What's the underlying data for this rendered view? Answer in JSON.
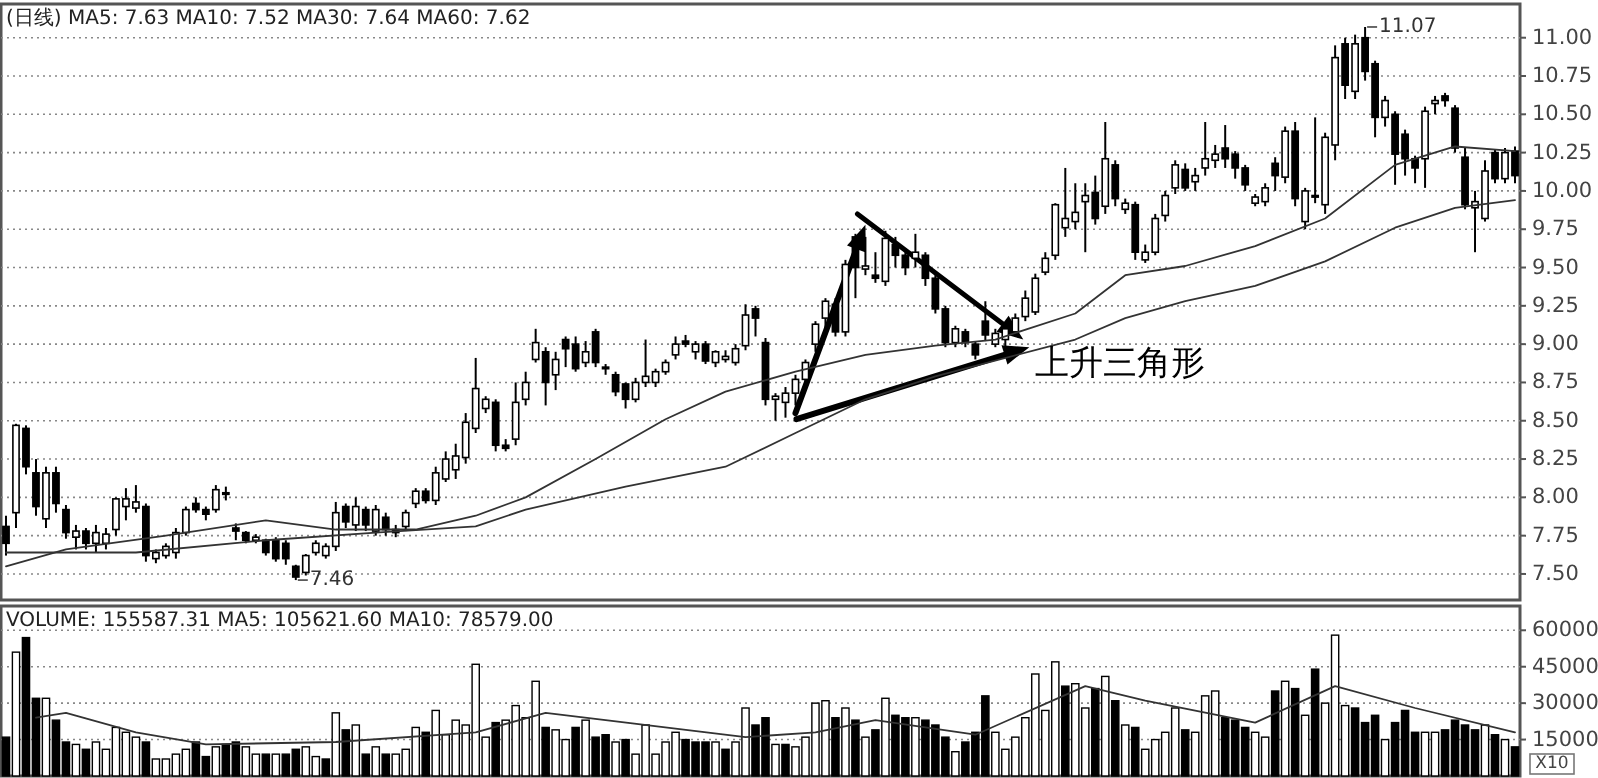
{
  "chart_data": [
    {
      "type": "candlestick",
      "title": "(日线) MA5: 7.63 MA10: 7.52 MA30: 7.64 MA60: 7.62",
      "categories": [
        null,
        null,
        null,
        null,
        null,
        null,
        null,
        null,
        null,
        null,
        null,
        null,
        null,
        null,
        null,
        null,
        null,
        null,
        null,
        null,
        null,
        null,
        null,
        null,
        null,
        null,
        null,
        null,
        null,
        null,
        null,
        null,
        null,
        null,
        null,
        null,
        null,
        null,
        null,
        null,
        null,
        null,
        null,
        null,
        null,
        null,
        null,
        null,
        null,
        null,
        null,
        null,
        null,
        null,
        null,
        null,
        null,
        null,
        null,
        null,
        null,
        null,
        null,
        null,
        null,
        null,
        null,
        null,
        null,
        null,
        null,
        null,
        null,
        null,
        null,
        null,
        null,
        null,
        null,
        null,
        null,
        null,
        null,
        null,
        null,
        null,
        null,
        null,
        null,
        null,
        null,
        null,
        null,
        null,
        null,
        null,
        null,
        null,
        null,
        null,
        null,
        null,
        null,
        null,
        null,
        null,
        null,
        null,
        null,
        null,
        null,
        null,
        null,
        null,
        null,
        null,
        null,
        null,
        null,
        null,
        null,
        null,
        null,
        null,
        null,
        null,
        null,
        null,
        null,
        null,
        null,
        null,
        null,
        null,
        null,
        null,
        null,
        null,
        null,
        null,
        null,
        null,
        null,
        null,
        null,
        null,
        null,
        null,
        null,
        null,
        null,
        null
      ],
      "ohlc": [
        [
          7.81,
          7.88,
          7.62,
          7.7
        ],
        [
          7.9,
          8.48,
          7.8,
          8.47
        ],
        [
          8.45,
          8.47,
          8.15,
          8.2
        ],
        [
          8.16,
          8.25,
          7.88,
          7.94
        ],
        [
          7.86,
          8.2,
          7.8,
          8.16
        ],
        [
          8.16,
          8.2,
          7.9,
          7.96
        ],
        [
          7.92,
          7.95,
          7.73,
          7.77
        ],
        [
          7.74,
          7.82,
          7.66,
          7.78
        ],
        [
          7.78,
          7.8,
          7.66,
          7.7
        ],
        [
          7.7,
          7.82,
          7.64,
          7.77
        ],
        [
          7.7,
          7.8,
          7.66,
          7.76
        ],
        [
          7.79,
          8.0,
          7.75,
          7.99
        ],
        [
          7.94,
          8.06,
          7.85,
          7.99
        ],
        [
          7.93,
          8.08,
          7.9,
          7.97
        ],
        [
          7.94,
          7.96,
          7.58,
          7.62
        ],
        [
          7.6,
          7.66,
          7.57,
          7.64
        ],
        [
          7.62,
          7.7,
          7.6,
          7.68
        ],
        [
          7.64,
          7.8,
          7.6,
          7.77
        ],
        [
          7.77,
          7.94,
          7.75,
          7.92
        ],
        [
          7.96,
          8.0,
          7.9,
          7.92
        ],
        [
          7.92,
          7.94,
          7.85,
          7.89
        ],
        [
          7.92,
          8.08,
          7.9,
          8.05
        ],
        [
          8.02,
          8.07,
          7.98,
          8.03
        ],
        [
          7.8,
          7.83,
          7.72,
          7.78
        ],
        [
          7.77,
          7.78,
          7.7,
          7.72
        ],
        [
          7.72,
          7.76,
          7.7,
          7.74
        ],
        [
          7.72,
          7.73,
          7.62,
          7.64
        ],
        [
          7.72,
          7.74,
          7.58,
          7.6
        ],
        [
          7.7,
          7.72,
          7.56,
          7.6
        ],
        [
          7.55,
          7.56,
          7.46,
          7.48
        ],
        [
          7.51,
          7.63,
          7.49,
          7.62
        ],
        [
          7.64,
          7.72,
          7.62,
          7.7
        ],
        [
          7.62,
          7.7,
          7.6,
          7.68
        ],
        [
          7.68,
          7.97,
          7.65,
          7.9
        ],
        [
          7.94,
          7.96,
          7.8,
          7.84
        ],
        [
          7.82,
          8.0,
          7.78,
          7.94
        ],
        [
          7.92,
          7.94,
          7.78,
          7.82
        ],
        [
          7.78,
          7.95,
          7.75,
          7.92
        ],
        [
          7.87,
          7.9,
          7.75,
          7.79
        ],
        [
          7.79,
          7.82,
          7.74,
          7.77
        ],
        [
          7.81,
          7.92,
          7.78,
          7.9
        ],
        [
          7.96,
          8.06,
          7.93,
          8.04
        ],
        [
          8.04,
          8.06,
          7.96,
          7.98
        ],
        [
          7.98,
          8.2,
          7.95,
          8.16
        ],
        [
          8.12,
          8.3,
          8.1,
          8.25
        ],
        [
          8.18,
          8.35,
          8.12,
          8.27
        ],
        [
          8.26,
          8.55,
          8.22,
          8.49
        ],
        [
          8.45,
          8.91,
          8.42,
          8.71
        ],
        [
          8.58,
          8.66,
          8.55,
          8.64
        ],
        [
          8.62,
          8.64,
          8.3,
          8.34
        ],
        [
          8.34,
          8.38,
          8.3,
          8.32
        ],
        [
          8.38,
          8.75,
          8.34,
          8.62
        ],
        [
          8.64,
          8.82,
          8.6,
          8.75
        ],
        [
          8.9,
          9.1,
          8.88,
          9.01
        ],
        [
          8.95,
          8.98,
          8.6,
          8.75
        ],
        [
          8.8,
          8.95,
          8.7,
          8.9
        ],
        [
          9.03,
          9.05,
          8.85,
          8.97
        ],
        [
          9.0,
          9.05,
          8.82,
          8.84
        ],
        [
          8.88,
          9.02,
          8.85,
          8.95
        ],
        [
          9.08,
          9.1,
          8.85,
          8.88
        ],
        [
          8.85,
          8.87,
          8.8,
          8.84
        ],
        [
          8.8,
          8.82,
          8.66,
          8.69
        ],
        [
          8.74,
          8.75,
          8.58,
          8.64
        ],
        [
          8.64,
          8.78,
          8.62,
          8.75
        ],
        [
          8.75,
          9.03,
          8.72,
          8.79
        ],
        [
          8.75,
          8.84,
          8.72,
          8.82
        ],
        [
          8.82,
          8.9,
          8.8,
          8.88
        ],
        [
          8.93,
          9.05,
          8.9,
          9.0
        ],
        [
          9.02,
          9.06,
          8.98,
          9.0
        ],
        [
          8.95,
          9.02,
          8.9,
          9.0
        ],
        [
          9.0,
          9.02,
          8.87,
          8.89
        ],
        [
          8.88,
          8.96,
          8.85,
          8.95
        ],
        [
          8.9,
          8.96,
          8.88,
          8.92
        ],
        [
          8.88,
          9.0,
          8.86,
          8.97
        ],
        [
          8.99,
          9.26,
          8.96,
          9.19
        ],
        [
          9.23,
          9.25,
          9.05,
          9.17
        ],
        [
          9.01,
          9.04,
          8.6,
          8.64
        ],
        [
          8.64,
          8.68,
          8.5,
          8.66
        ],
        [
          8.62,
          8.72,
          8.52,
          8.68
        ],
        [
          8.68,
          8.8,
          8.6,
          8.77
        ],
        [
          8.77,
          8.9,
          8.72,
          8.88
        ],
        [
          9.0,
          9.15,
          8.95,
          9.13
        ],
        [
          9.17,
          9.3,
          9.1,
          9.28
        ],
        [
          9.26,
          9.3,
          9.05,
          9.08
        ],
        [
          9.08,
          9.55,
          9.05,
          9.52
        ],
        [
          9.7,
          9.72,
          9.3,
          9.5
        ],
        [
          9.49,
          9.7,
          9.45,
          9.51
        ],
        [
          9.45,
          9.6,
          9.4,
          9.43
        ],
        [
          9.41,
          9.74,
          9.38,
          9.69
        ],
        [
          9.65,
          9.7,
          9.5,
          9.58
        ],
        [
          9.58,
          9.6,
          9.45,
          9.5
        ],
        [
          9.56,
          9.72,
          9.5,
          9.6
        ],
        [
          9.58,
          9.6,
          9.38,
          9.43
        ],
        [
          9.43,
          9.45,
          9.2,
          9.23
        ],
        [
          9.23,
          9.25,
          8.98,
          9.01
        ],
        [
          9.01,
          9.12,
          8.98,
          9.1
        ],
        [
          9.08,
          9.1,
          8.98,
          9.01
        ],
        [
          9.0,
          9.02,
          8.9,
          8.93
        ],
        [
          9.15,
          9.28,
          9.02,
          9.06
        ],
        [
          9.0,
          9.1,
          8.98,
          9.07
        ],
        [
          9.03,
          9.12,
          8.98,
          9.1
        ],
        [
          9.08,
          9.2,
          9.05,
          9.17
        ],
        [
          9.18,
          9.35,
          9.15,
          9.3
        ],
        [
          9.21,
          9.46,
          9.19,
          9.43
        ],
        [
          9.47,
          9.6,
          9.45,
          9.56
        ],
        [
          9.58,
          9.92,
          9.55,
          9.91
        ],
        [
          9.76,
          10.15,
          9.7,
          9.82
        ],
        [
          9.8,
          10.05,
          9.75,
          9.86
        ],
        [
          9.93,
          10.05,
          9.6,
          9.97
        ],
        [
          9.99,
          10.1,
          9.78,
          9.82
        ],
        [
          9.9,
          10.45,
          9.85,
          10.21
        ],
        [
          10.17,
          10.2,
          9.9,
          9.95
        ],
        [
          9.88,
          9.95,
          9.85,
          9.92
        ],
        [
          9.91,
          9.93,
          9.55,
          9.6
        ],
        [
          9.55,
          9.65,
          9.53,
          9.6
        ],
        [
          9.6,
          9.85,
          9.58,
          9.82
        ],
        [
          9.84,
          10.0,
          9.8,
          9.97
        ],
        [
          10.02,
          10.2,
          9.98,
          10.17
        ],
        [
          10.14,
          10.18,
          10.0,
          10.02
        ],
        [
          10.06,
          10.15,
          10.0,
          10.1
        ],
        [
          10.15,
          10.45,
          10.1,
          10.21
        ],
        [
          10.2,
          10.3,
          10.15,
          10.24
        ],
        [
          10.28,
          10.43,
          10.15,
          10.21
        ],
        [
          10.24,
          10.26,
          10.08,
          10.15
        ],
        [
          10.15,
          10.17,
          10.0,
          10.04
        ],
        [
          9.92,
          9.98,
          9.9,
          9.96
        ],
        [
          9.93,
          10.05,
          9.9,
          10.02
        ],
        [
          10.18,
          10.22,
          10.0,
          10.1
        ],
        [
          10.09,
          10.42,
          10.05,
          10.39
        ],
        [
          10.39,
          10.45,
          9.9,
          9.95
        ],
        [
          9.8,
          10.02,
          9.75,
          10.0
        ],
        [
          9.96,
          10.48,
          9.92,
          9.97
        ],
        [
          9.91,
          10.38,
          9.85,
          10.35
        ],
        [
          10.3,
          10.95,
          10.2,
          10.87
        ],
        [
          10.96,
          11.0,
          10.6,
          10.69
        ],
        [
          10.65,
          11.02,
          10.6,
          10.96
        ],
        [
          11.0,
          11.07,
          10.72,
          10.78
        ],
        [
          10.83,
          10.85,
          10.35,
          10.48
        ],
        [
          10.48,
          10.62,
          10.42,
          10.59
        ],
        [
          10.5,
          10.52,
          10.04,
          10.24
        ],
        [
          10.37,
          10.4,
          10.1,
          10.21
        ],
        [
          10.21,
          10.23,
          10.05,
          10.15
        ],
        [
          10.21,
          10.55,
          10.02,
          10.52
        ],
        [
          10.57,
          10.62,
          10.5,
          10.59
        ],
        [
          10.62,
          10.64,
          10.55,
          10.59
        ],
        [
          10.54,
          10.56,
          10.25,
          10.28
        ],
        [
          10.22,
          10.28,
          9.88,
          9.91
        ],
        [
          9.89,
          10.0,
          9.6,
          9.93
        ],
        [
          9.82,
          10.2,
          9.8,
          10.13
        ],
        [
          10.25,
          10.27,
          10.05,
          10.08
        ],
        [
          10.08,
          10.28,
          10.05,
          10.25
        ],
        [
          10.26,
          10.29,
          10.05,
          10.1
        ]
      ],
      "series": [
        {
          "type": "line",
          "color": "#333333",
          "values": [
            7.55,
            null,
            null,
            null,
            null,
            null,
            7.66,
            null,
            null,
            null,
            null,
            null,
            null,
            null,
            null,
            null,
            7.75,
            null,
            null,
            null,
            null,
            null,
            null,
            null,
            null,
            null,
            7.85,
            null,
            null,
            null,
            null,
            null,
            null,
            7.79,
            null,
            null,
            null,
            null,
            null,
            null,
            null,
            7.79,
            null,
            null,
            null,
            null,
            null,
            7.88,
            null,
            null,
            null,
            null,
            8.0,
            null,
            null,
            null,
            null,
            null,
            null,
            8.25,
            null,
            null,
            null,
            null,
            null,
            null,
            8.51,
            null,
            null,
            null,
            null,
            null,
            8.69,
            null,
            null,
            null,
            null,
            null,
            null,
            8.82,
            null,
            null,
            null,
            null,
            null,
            null,
            8.93,
            null,
            null,
            null,
            null,
            null,
            null,
            8.99,
            null,
            null,
            null,
            null,
            null,
            9.03,
            null,
            null,
            null,
            null,
            null,
            null,
            null,
            9.2,
            null,
            null,
            null,
            null,
            9.45,
            null,
            null,
            null,
            null,
            null,
            9.51,
            null,
            null,
            null,
            null,
            null,
            null,
            9.64,
            null,
            null,
            null,
            null,
            null,
            null,
            9.82,
            null,
            null,
            null,
            null,
            null,
            null,
            10.17,
            null,
            null,
            null,
            null,
            null,
            10.29,
            null,
            null,
            null,
            null,
            null,
            10.26
          ]
        },
        {
          "type": "line",
          "color": "#333333",
          "values": [
            7.64,
            null,
            null,
            null,
            null,
            null,
            null,
            null,
            null,
            null,
            null,
            null,
            null,
            7.64,
            null,
            null,
            null,
            null,
            null,
            null,
            null,
            null,
            null,
            null,
            null,
            null,
            7.72,
            null,
            null,
            null,
            null,
            null,
            null,
            null,
            null,
            null,
            null,
            7.77,
            null,
            null,
            null,
            null,
            null,
            null,
            null,
            null,
            null,
            7.81,
            null,
            null,
            null,
            null,
            7.92,
            null,
            null,
            null,
            null,
            null,
            null,
            null,
            null,
            null,
            8.07,
            null,
            null,
            null,
            null,
            null,
            null,
            null,
            null,
            null,
            8.2,
            null,
            null,
            null,
            null,
            null,
            null,
            8.42,
            null,
            null,
            null,
            null,
            null,
            null,
            8.64,
            null,
            null,
            null,
            null,
            null,
            null,
            8.79,
            null,
            null,
            null,
            null,
            null,
            null,
            null,
            null,
            null,
            null,
            null,
            null,
            null,
            9.03,
            null,
            null,
            null,
            null,
            9.17,
            null,
            null,
            null,
            null,
            null,
            9.28,
            null,
            null,
            null,
            null,
            null,
            null,
            9.38,
            null,
            null,
            null,
            null,
            null,
            null,
            9.54,
            null,
            null,
            null,
            null,
            null,
            null,
            9.76,
            null,
            null,
            null,
            null,
            null,
            9.89,
            null,
            null,
            null,
            null,
            null,
            9.94
          ]
        }
      ],
      "ylim": [
        7.33,
        11.22
      ],
      "yticks": [
        {
          "value": 7.5,
          "label": "7.50"
        },
        {
          "value": 7.75,
          "label": "7.75"
        },
        {
          "value": 8,
          "label": "8.00"
        },
        {
          "value": 8.25,
          "label": "8.25"
        },
        {
          "value": 8.5,
          "label": "8.50"
        },
        {
          "value": 8.75,
          "label": "8.75"
        },
        {
          "value": 9,
          "label": "9.00"
        },
        {
          "value": 9.25,
          "label": "9.25"
        },
        {
          "value": 9.5,
          "label": "9.50"
        },
        {
          "value": 9.75,
          "label": "9.75"
        },
        {
          "value": 10,
          "label": "10.00"
        },
        {
          "value": 10.25,
          "label": "10.25"
        },
        {
          "value": 10.5,
          "label": "10.50"
        },
        {
          "value": 10.75,
          "label": "10.75"
        },
        {
          "value": 11,
          "label": "11.00"
        }
      ],
      "grid": "y",
      "tick_labels": "y",
      "annotations": [
        "上升三角形",
        "11.07",
        "7.46"
      ]
    },
    {
      "type": "bar",
      "title": "VOLUME: 155587.31 MA5: 105621.60 MA10: 78579.00",
      "categories": [
        null,
        null,
        null,
        null,
        null,
        null,
        null,
        null,
        null,
        null,
        null,
        null,
        null,
        null,
        null,
        null,
        null,
        null,
        null,
        null,
        null,
        null,
        null,
        null,
        null,
        null,
        null,
        null,
        null,
        null,
        null,
        null,
        null,
        null,
        null,
        null,
        null,
        null,
        null,
        null,
        null,
        null,
        null,
        null,
        null,
        null,
        null,
        null,
        null,
        null,
        null,
        null,
        null,
        null,
        null,
        null,
        null,
        null,
        null,
        null,
        null,
        null,
        null,
        null,
        null,
        null,
        null,
        null,
        null,
        null,
        null,
        null,
        null,
        null,
        null,
        null,
        null,
        null,
        null,
        null,
        null,
        null,
        null,
        null,
        null,
        null,
        null,
        null,
        null,
        null,
        null,
        null,
        null,
        null,
        null,
        null,
        null,
        null,
        null,
        null,
        null,
        null,
        null,
        null,
        null,
        null,
        null,
        null,
        null,
        null,
        null,
        null,
        null,
        null,
        null,
        null,
        null,
        null,
        null,
        null,
        null,
        null,
        null,
        null,
        null,
        null,
        null,
        null,
        null,
        null,
        null,
        null,
        null,
        null,
        null,
        null,
        null,
        null,
        null,
        null,
        null,
        null,
        null,
        null,
        null,
        null,
        null,
        null,
        null,
        null,
        null,
        null
      ],
      "series": [
        {
          "type": "bar",
          "values": [
            16000,
            51000,
            57000,
            32000,
            32000,
            23000,
            14000,
            13000,
            11000,
            14000,
            11000,
            20000,
            18000,
            16000,
            14000,
            7000,
            7000,
            9000,
            11000,
            14000,
            8000,
            12000,
            13000,
            14000,
            12000,
            9000,
            9000,
            9000,
            9000,
            11000,
            12000,
            8000,
            7000,
            26000,
            19000,
            21000,
            9000,
            12000,
            9000,
            9000,
            11000,
            20000,
            18000,
            27000,
            17000,
            23000,
            21000,
            46000,
            16000,
            22000,
            23000,
            29000,
            24000,
            39000,
            20000,
            19000,
            15000,
            20000,
            23000,
            16000,
            17000,
            14000,
            15000,
            9000,
            21000,
            9000,
            14000,
            18000,
            15000,
            14000,
            14000,
            14000,
            11000,
            14000,
            28000,
            21000,
            24000,
            13000,
            13000,
            12000,
            16000,
            30000,
            31000,
            24000,
            28000,
            23000,
            16000,
            19000,
            32000,
            25000,
            24000,
            24000,
            23000,
            21000,
            16000,
            10000,
            14000,
            18000,
            33000,
            18000,
            11000,
            16000,
            24000,
            42000,
            27000,
            47000,
            37000,
            38000,
            28000,
            36000,
            41000,
            31000,
            21000,
            20000,
            11000,
            15000,
            18000,
            28000,
            19000,
            18000,
            33000,
            35000,
            24000,
            23000,
            20000,
            18000,
            16000,
            35000,
            39000,
            36000,
            25000,
            44000,
            30000,
            58000,
            29000,
            28000,
            22000,
            25000,
            15000,
            22000,
            27000,
            18000,
            18000,
            18000,
            19000,
            23000,
            21000,
            19000,
            21000,
            17000,
            15000,
            12000
          ],
          "colors": [
            "#000000",
            "#ffffff",
            "#000000",
            "#000000",
            "#ffffff",
            "#000000",
            "#000000",
            "#ffffff",
            "#000000",
            "#ffffff",
            "#ffffff",
            "#ffffff",
            "#ffffff",
            "#ffffff",
            "#000000",
            "#ffffff",
            "#ffffff",
            "#ffffff",
            "#ffffff",
            "#000000",
            "#000000",
            "#ffffff",
            "#000000",
            "#000000",
            "#ffffff",
            "#ffffff",
            "#000000",
            "#ffffff",
            "#000000",
            "#000000",
            "#ffffff",
            "#ffffff",
            "#000000",
            "#ffffff",
            "#000000",
            "#ffffff",
            "#000000",
            "#ffffff",
            "#000000",
            "#ffffff",
            "#ffffff",
            "#ffffff",
            "#000000",
            "#ffffff",
            "#ffffff",
            "#ffffff",
            "#ffffff",
            "#ffffff",
            "#ffffff",
            "#000000",
            "#ffffff",
            "#ffffff",
            "#ffffff",
            "#ffffff",
            "#000000",
            "#ffffff",
            "#ffffff",
            "#000000",
            "#ffffff",
            "#000000",
            "#000000",
            "#ffffff",
            "#000000",
            "#ffffff",
            "#ffffff",
            "#ffffff",
            "#ffffff",
            "#ffffff",
            "#000000",
            "#000000",
            "#000000",
            "#ffffff",
            "#000000",
            "#ffffff",
            "#ffffff",
            "#000000",
            "#000000",
            "#ffffff",
            "#000000",
            "#ffffff",
            "#ffffff",
            "#ffffff",
            "#ffffff",
            "#000000",
            "#ffffff",
            "#000000",
            "#ffffff",
            "#000000",
            "#ffffff",
            "#000000",
            "#000000",
            "#ffffff",
            "#000000",
            "#000000",
            "#000000",
            "#ffffff",
            "#000000",
            "#000000",
            "#000000",
            "#ffffff",
            "#ffffff",
            "#ffffff",
            "#ffffff",
            "#ffffff",
            "#ffffff",
            "#ffffff",
            "#000000",
            "#ffffff",
            "#ffffff",
            "#000000",
            "#ffffff",
            "#000000",
            "#ffffff",
            "#000000",
            "#ffffff",
            "#ffffff",
            "#ffffff",
            "#ffffff",
            "#000000",
            "#ffffff",
            "#ffffff",
            "#ffffff",
            "#000000",
            "#000000",
            "#000000",
            "#ffffff",
            "#ffffff",
            "#000000",
            "#ffffff",
            "#000000",
            "#ffffff",
            "#000000",
            "#ffffff",
            "#ffffff",
            "#ffffff",
            "#000000",
            "#000000",
            "#000000",
            "#ffffff",
            "#000000",
            "#000000",
            "#000000",
            "#ffffff",
            "#ffffff",
            "#000000",
            "#000000",
            "#000000",
            "#000000",
            "#ffffff",
            "#000000",
            "#ffffff",
            "#000000"
          ]
        },
        {
          "type": "line",
          "color": "#333333",
          "values": [
            null,
            null,
            null,
            24000,
            null,
            null,
            26000,
            null,
            null,
            null,
            null,
            null,
            null,
            18000,
            null,
            null,
            null,
            null,
            null,
            null,
            13000,
            null,
            null,
            null,
            null,
            null,
            null,
            null,
            null,
            null,
            null,
            null,
            null,
            14000,
            null,
            null,
            null,
            null,
            null,
            null,
            null,
            null,
            null,
            null,
            null,
            null,
            null,
            18000,
            null,
            null,
            null,
            null,
            null,
            null,
            26000,
            null,
            null,
            null,
            null,
            null,
            23000,
            null,
            null,
            null,
            null,
            null,
            null,
            null,
            null,
            null,
            null,
            null,
            null,
            null,
            16000,
            null,
            null,
            null,
            null,
            null,
            null,
            18000,
            null,
            null,
            null,
            null,
            null,
            23000,
            null,
            null,
            null,
            null,
            null,
            null,
            null,
            null,
            null,
            17000,
            null,
            null,
            null,
            null,
            null,
            null,
            null,
            null,
            null,
            null,
            37000,
            null,
            null,
            null,
            null,
            null,
            31000,
            null,
            null,
            null,
            null,
            null,
            null,
            null,
            null,
            null,
            null,
            22000,
            null,
            null,
            null,
            null,
            null,
            null,
            null,
            37000,
            null,
            null,
            null,
            null,
            null,
            null,
            null,
            28000,
            null,
            null,
            null,
            null,
            null,
            null,
            null,
            null,
            null,
            18000
          ]
        }
      ],
      "ylim": [
        0,
        70000
      ],
      "yticks": [
        15000,
        30000,
        45000,
        60000
      ],
      "grid": "y",
      "tick_labels": "y",
      "annotations": [
        "X10"
      ]
    }
  ]
}
